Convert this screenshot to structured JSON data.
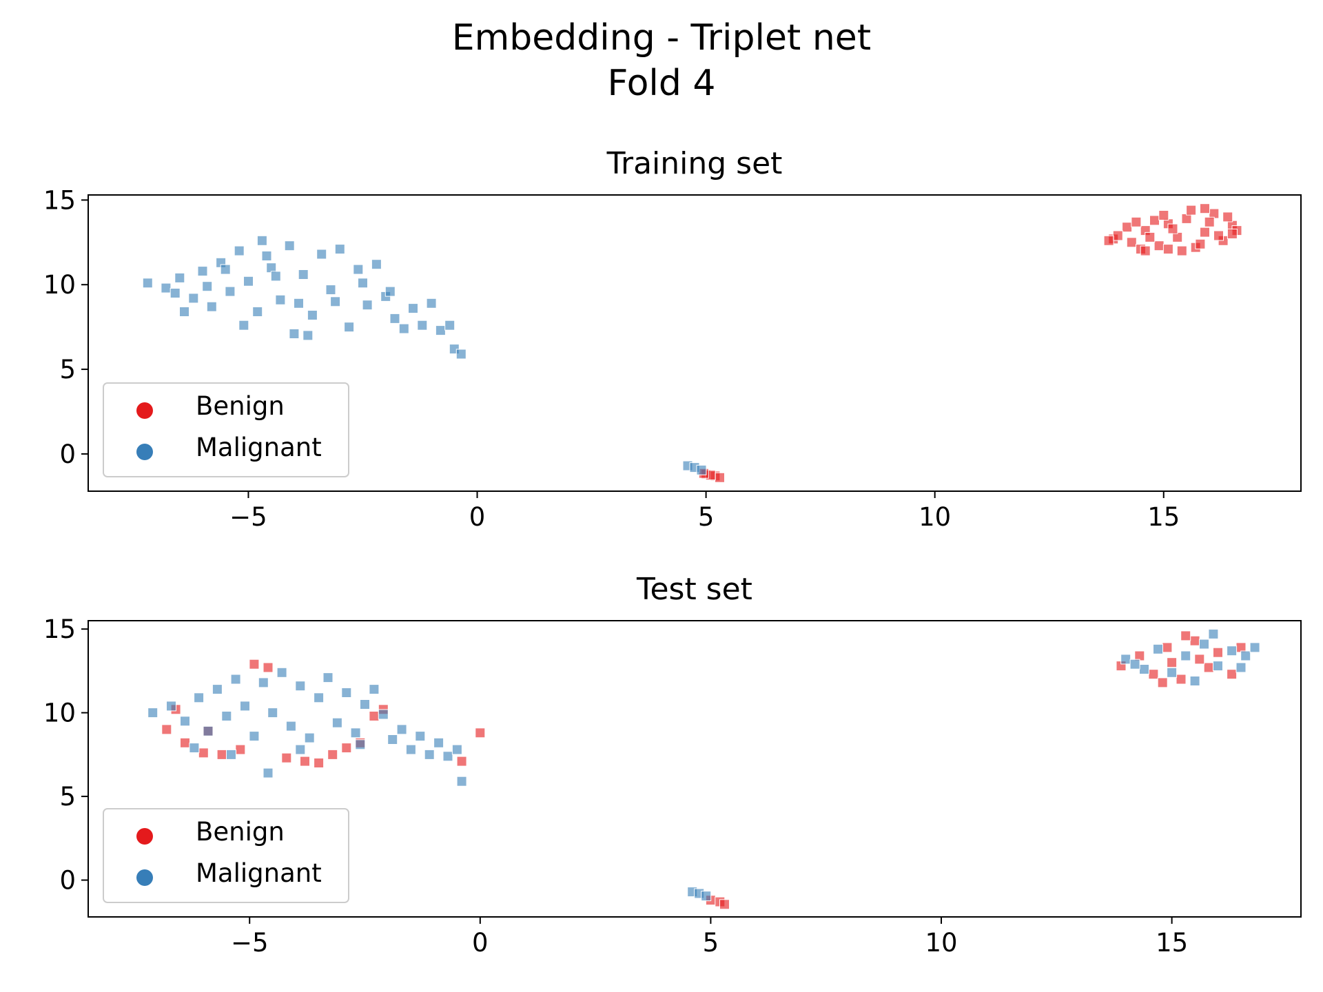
{
  "figure": {
    "title_line1": "Embedding - Triplet net",
    "title_line2": "Fold 4"
  },
  "colors": {
    "benign": "#e41a1c",
    "malignant": "#377eb8"
  },
  "legend": {
    "location": "lower-left",
    "entries": [
      "Benign",
      "Malignant"
    ]
  },
  "chart_data": [
    {
      "type": "scatter",
      "title": "Training set",
      "xlim": [
        -8.5,
        18
      ],
      "ylim": [
        -2.2,
        15.3
      ],
      "xticks": [
        -5,
        0,
        5,
        10,
        15
      ],
      "xtick_labels": [
        "−5",
        "0",
        "5",
        "10",
        "15"
      ],
      "yticks": [
        0,
        5,
        10,
        15
      ],
      "ytick_labels": [
        "0",
        "5",
        "10",
        "15"
      ],
      "marker": "square",
      "grid": false,
      "series": [
        {
          "name": "Benign",
          "color": "#e41a1c",
          "points": [
            [
              13.9,
              12.7
            ],
            [
              14.3,
              12.5
            ],
            [
              14.6,
              13.2
            ],
            [
              14.9,
              12.3
            ],
            [
              15.1,
              13.6
            ],
            [
              15.3,
              12.8
            ],
            [
              15.5,
              13.9
            ],
            [
              15.7,
              12.2
            ],
            [
              15.9,
              13.1
            ],
            [
              16.1,
              14.2
            ],
            [
              16.3,
              12.6
            ],
            [
              16.5,
              13.5
            ],
            [
              14.2,
              13.4
            ],
            [
              14.8,
              13.8
            ],
            [
              15.4,
              12.0
            ],
            [
              16.0,
              13.7
            ],
            [
              16.4,
              14.0
            ],
            [
              14.0,
              12.9
            ],
            [
              14.5,
              12.1
            ],
            [
              15.0,
              14.1
            ],
            [
              15.6,
              14.4
            ],
            [
              15.8,
              12.4
            ],
            [
              16.2,
              12.9
            ],
            [
              16.6,
              13.2
            ],
            [
              14.7,
              12.8
            ],
            [
              15.2,
              13.3
            ],
            [
              13.8,
              12.6
            ],
            [
              14.4,
              13.7
            ],
            [
              15.9,
              14.5
            ],
            [
              16.5,
              13.0
            ],
            [
              15.1,
              12.1
            ],
            [
              14.6,
              12.0
            ],
            [
              5.0,
              -1.2
            ],
            [
              5.2,
              -1.3
            ],
            [
              5.3,
              -1.4
            ],
            [
              5.1,
              -1.25
            ],
            [
              4.95,
              -1.15
            ]
          ]
        },
        {
          "name": "Malignant",
          "color": "#377eb8",
          "points": [
            [
              -7.2,
              10.1
            ],
            [
              -6.8,
              9.8
            ],
            [
              -6.5,
              10.4
            ],
            [
              -6.2,
              9.2
            ],
            [
              -6.0,
              10.8
            ],
            [
              -5.8,
              8.7
            ],
            [
              -5.6,
              11.3
            ],
            [
              -5.4,
              9.6
            ],
            [
              -5.2,
              12.0
            ],
            [
              -5.0,
              10.2
            ],
            [
              -4.8,
              8.4
            ],
            [
              -4.7,
              12.6
            ],
            [
              -4.5,
              11.0
            ],
            [
              -4.3,
              9.1
            ],
            [
              -4.1,
              12.3
            ],
            [
              -4.0,
              7.1
            ],
            [
              -3.8,
              10.6
            ],
            [
              -3.6,
              8.2
            ],
            [
              -3.4,
              11.8
            ],
            [
              -3.2,
              9.7
            ],
            [
              -3.0,
              12.1
            ],
            [
              -2.8,
              7.5
            ],
            [
              -2.6,
              10.9
            ],
            [
              -2.4,
              8.8
            ],
            [
              -2.2,
              11.2
            ],
            [
              -2.0,
              9.3
            ],
            [
              -1.8,
              8.0
            ],
            [
              -1.6,
              7.4
            ],
            [
              -1.4,
              8.6
            ],
            [
              -1.2,
              7.6
            ],
            [
              -1.0,
              8.9
            ],
            [
              -0.8,
              7.3
            ],
            [
              -0.6,
              7.6
            ],
            [
              -6.4,
              8.4
            ],
            [
              -5.9,
              9.9
            ],
            [
              -5.1,
              7.6
            ],
            [
              -4.4,
              10.5
            ],
            [
              -3.7,
              7.0
            ],
            [
              -3.1,
              9.0
            ],
            [
              -2.5,
              10.1
            ],
            [
              -1.9,
              9.6
            ],
            [
              -0.5,
              6.2
            ],
            [
              -0.35,
              5.9
            ],
            [
              -5.5,
              10.9
            ],
            [
              -4.6,
              11.7
            ],
            [
              -3.9,
              8.9
            ],
            [
              -6.6,
              9.5
            ],
            [
              4.6,
              -0.7
            ],
            [
              4.75,
              -0.8
            ],
            [
              4.9,
              -0.95
            ]
          ]
        }
      ]
    },
    {
      "type": "scatter",
      "title": "Test set",
      "xlim": [
        -8.5,
        17.8
      ],
      "ylim": [
        -2.2,
        15.5
      ],
      "xticks": [
        -5,
        0,
        5,
        10,
        15
      ],
      "xtick_labels": [
        "−5",
        "0",
        "5",
        "10",
        "15"
      ],
      "yticks": [
        0,
        5,
        10,
        15
      ],
      "ytick_labels": [
        "0",
        "5",
        "10",
        "15"
      ],
      "marker": "square",
      "grid": false,
      "series": [
        {
          "name": "Benign",
          "color": "#e41a1c",
          "points": [
            [
              -6.8,
              9.0
            ],
            [
              -6.4,
              8.2
            ],
            [
              -6.0,
              7.6
            ],
            [
              -5.6,
              7.5
            ],
            [
              -5.2,
              7.8
            ],
            [
              -4.9,
              12.9
            ],
            [
              -4.6,
              12.7
            ],
            [
              -4.2,
              7.3
            ],
            [
              -3.8,
              7.1
            ],
            [
              -3.5,
              7.0
            ],
            [
              -3.2,
              7.5
            ],
            [
              -2.9,
              7.9
            ],
            [
              -2.6,
              8.2
            ],
            [
              -2.3,
              9.8
            ],
            [
              -2.1,
              10.2
            ],
            [
              -0.4,
              7.1
            ],
            [
              0.0,
              8.8
            ],
            [
              -6.6,
              10.2
            ],
            [
              -5.9,
              8.9
            ],
            [
              13.9,
              12.8
            ],
            [
              14.3,
              13.4
            ],
            [
              14.6,
              12.3
            ],
            [
              14.9,
              13.9
            ],
            [
              15.2,
              12.0
            ],
            [
              15.5,
              14.3
            ],
            [
              15.8,
              12.7
            ],
            [
              16.0,
              13.6
            ],
            [
              16.3,
              12.3
            ],
            [
              15.0,
              13.0
            ],
            [
              15.6,
              13.2
            ],
            [
              14.8,
              11.8
            ],
            [
              15.3,
              14.6
            ],
            [
              16.5,
              13.9
            ],
            [
              5.0,
              -1.2
            ],
            [
              5.2,
              -1.3
            ],
            [
              5.3,
              -1.45
            ]
          ]
        },
        {
          "name": "Malignant",
          "color": "#377eb8",
          "points": [
            [
              -7.1,
              10.0
            ],
            [
              -6.7,
              10.4
            ],
            [
              -6.4,
              9.5
            ],
            [
              -6.1,
              10.9
            ],
            [
              -5.9,
              8.9
            ],
            [
              -5.7,
              11.4
            ],
            [
              -5.5,
              9.8
            ],
            [
              -5.3,
              12.0
            ],
            [
              -5.1,
              10.4
            ],
            [
              -4.9,
              8.6
            ],
            [
              -4.7,
              11.8
            ],
            [
              -4.5,
              10.0
            ],
            [
              -4.3,
              12.4
            ],
            [
              -4.1,
              9.2
            ],
            [
              -3.9,
              11.6
            ],
            [
              -3.7,
              8.5
            ],
            [
              -3.5,
              10.9
            ],
            [
              -3.3,
              12.1
            ],
            [
              -3.1,
              9.4
            ],
            [
              -2.9,
              11.2
            ],
            [
              -2.7,
              8.8
            ],
            [
              -2.5,
              10.5
            ],
            [
              -2.3,
              11.4
            ],
            [
              -2.1,
              9.9
            ],
            [
              -1.9,
              8.4
            ],
            [
              -1.7,
              9.0
            ],
            [
              -1.5,
              7.8
            ],
            [
              -1.3,
              8.6
            ],
            [
              -1.1,
              7.5
            ],
            [
              -0.9,
              8.2
            ],
            [
              -0.7,
              7.4
            ],
            [
              -0.5,
              7.8
            ],
            [
              -4.6,
              6.4
            ],
            [
              -5.4,
              7.5
            ],
            [
              -3.9,
              7.8
            ],
            [
              -0.4,
              5.9
            ],
            [
              -6.2,
              7.9
            ],
            [
              -2.6,
              8.1
            ],
            [
              14.0,
              13.2
            ],
            [
              14.4,
              12.6
            ],
            [
              14.7,
              13.8
            ],
            [
              15.0,
              12.4
            ],
            [
              15.3,
              13.4
            ],
            [
              15.7,
              14.1
            ],
            [
              16.0,
              12.8
            ],
            [
              16.3,
              13.7
            ],
            [
              16.6,
              13.4
            ],
            [
              16.8,
              13.9
            ],
            [
              15.5,
              11.9
            ],
            [
              14.2,
              12.9
            ],
            [
              15.9,
              14.7
            ],
            [
              16.5,
              12.7
            ],
            [
              4.6,
              -0.7
            ],
            [
              4.75,
              -0.8
            ],
            [
              4.9,
              -0.95
            ]
          ]
        }
      ]
    }
  ]
}
